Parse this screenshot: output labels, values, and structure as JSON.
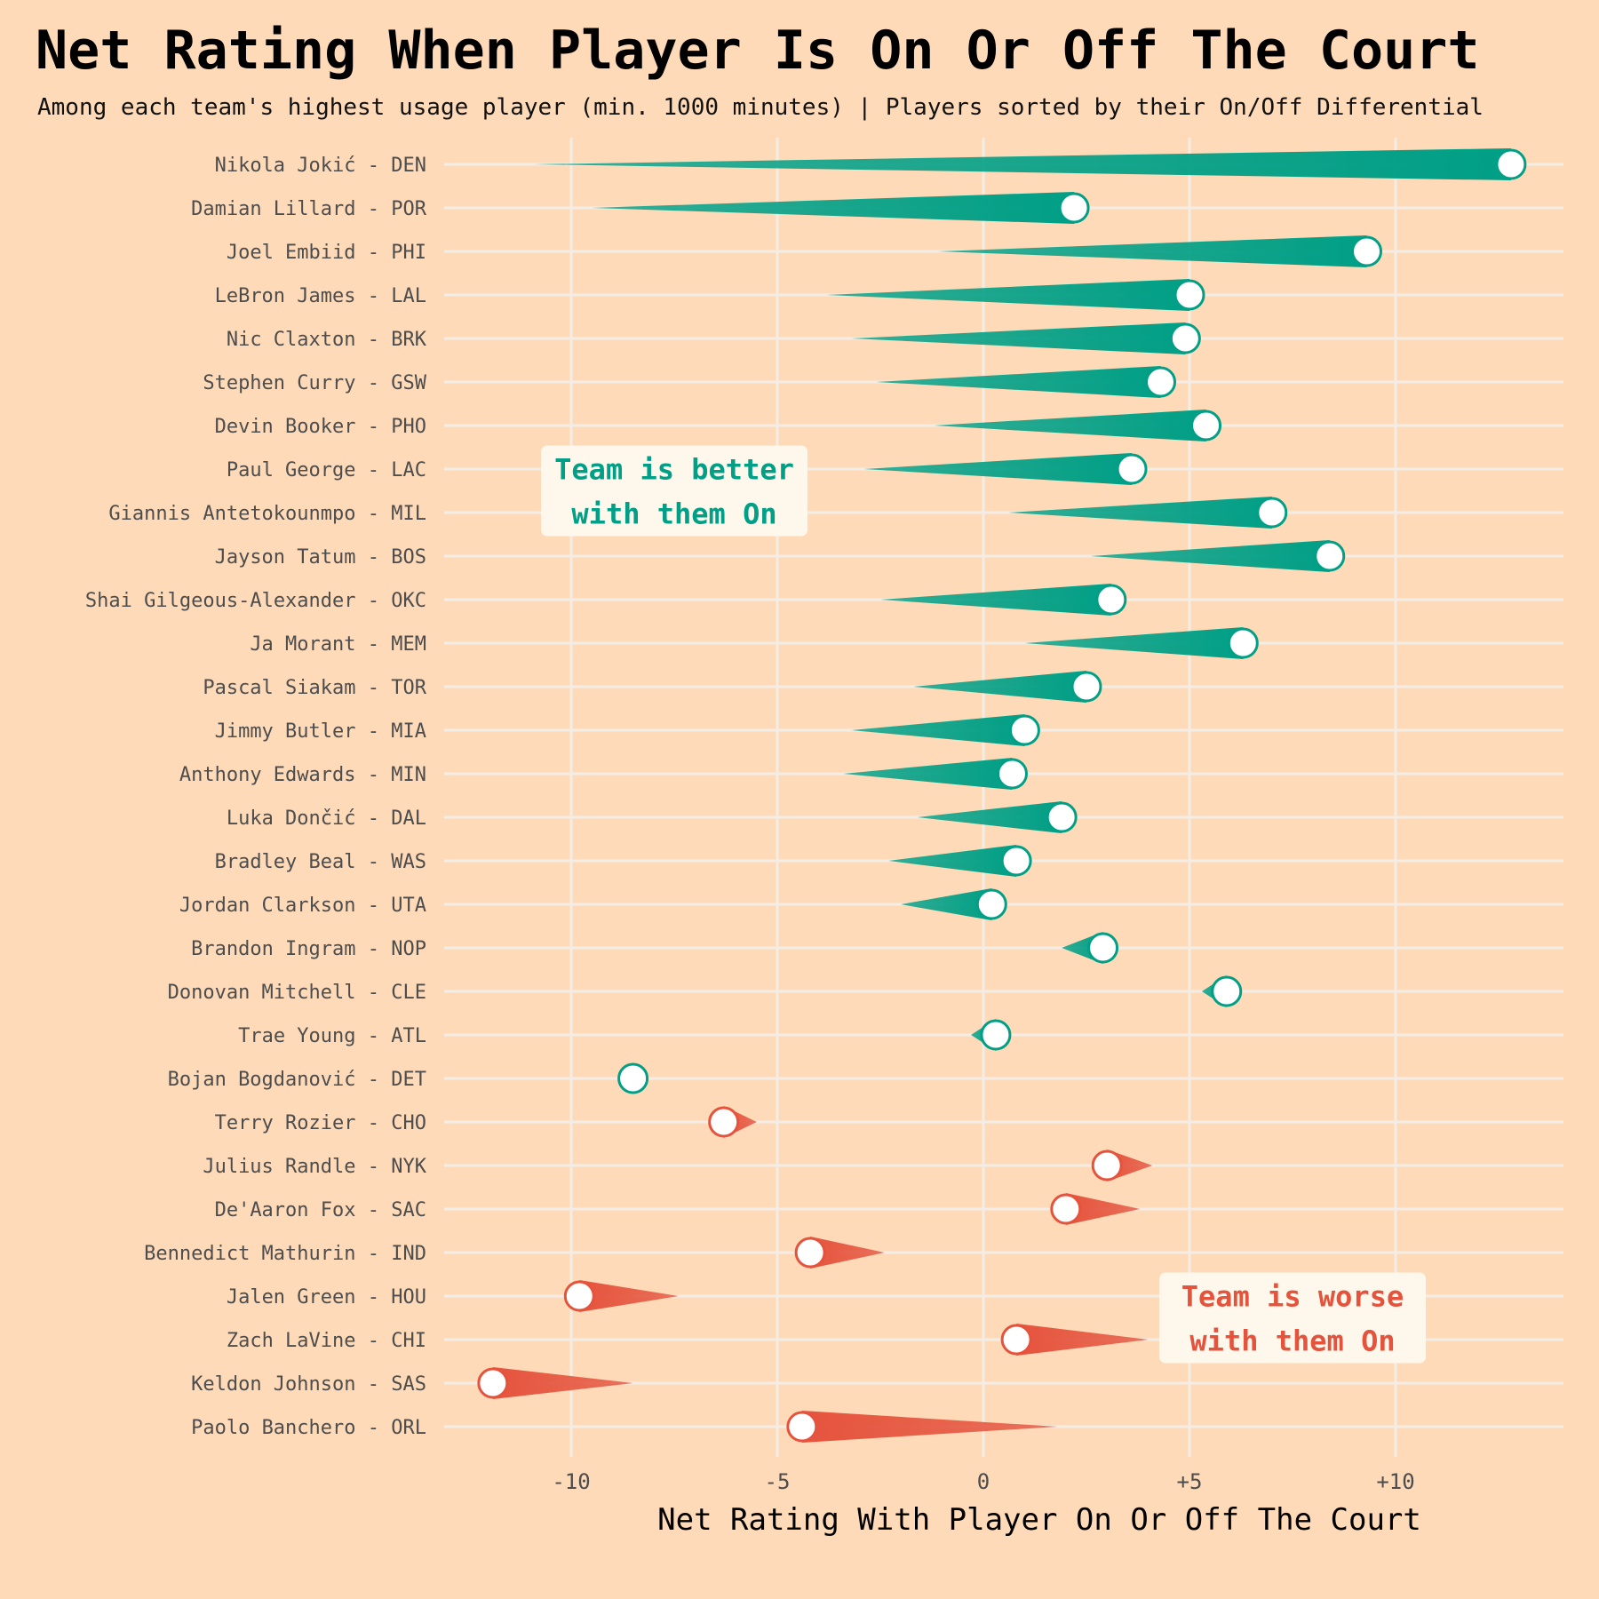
{
  "chart_data": {
    "type": "comet",
    "title": "Net Rating When Player Is On Or Off The Court",
    "subtitle": "Among each team's highest usage player (min. 1000 minutes) | Players sorted by their On/Off Differential",
    "xlabel": "Net Rating With Player On Or Off The Court",
    "xlim": [
      -13.5,
      14
    ],
    "xticks": [
      {
        "value": -10,
        "label": "-10"
      },
      {
        "value": -5,
        "label": "-5"
      },
      {
        "value": 0,
        "label": "0"
      },
      {
        "value": 5,
        "label": "+5"
      },
      {
        "value": 10,
        "label": "+10"
      }
    ],
    "grid": true,
    "colors": {
      "better": "#009F86",
      "worse": "#E5533D",
      "background": "#FEDAB8",
      "grid": "#F3EDE6",
      "note_bg": "#FEF8EC"
    },
    "annotations": [
      {
        "id": "better",
        "lines": [
          "Team is better",
          "with them On"
        ],
        "x": -7.5,
        "y_between": [
          "Paul George - LAC",
          "Giannis Antetokounmpo - MIL"
        ]
      },
      {
        "id": "worse",
        "lines": [
          "Team is worse",
          "with them On"
        ],
        "x": 7.5,
        "y_between": [
          "Jalen Green - HOU",
          "Zach LaVine - CHI"
        ]
      }
    ],
    "players": [
      {
        "label": "Nikola Jokić - DEN",
        "off": -10.9,
        "on": 12.8
      },
      {
        "label": "Damian Lillard - POR",
        "off": -9.5,
        "on": 2.2
      },
      {
        "label": "Joel Embiid - PHI",
        "off": -1.1,
        "on": 9.3
      },
      {
        "label": "LeBron James - LAL",
        "off": -3.8,
        "on": 5.0
      },
      {
        "label": "Nic Claxton - BRK",
        "off": -3.2,
        "on": 4.9
      },
      {
        "label": "Stephen Curry - GSW",
        "off": -2.6,
        "on": 4.3
      },
      {
        "label": "Devin Booker - PHO",
        "off": -1.2,
        "on": 5.4
      },
      {
        "label": "Paul George - LAC",
        "off": -2.9,
        "on": 3.6
      },
      {
        "label": "Giannis Antetokounmpo - MIL",
        "off": 0.6,
        "on": 7.0
      },
      {
        "label": "Jayson Tatum - BOS",
        "off": 2.6,
        "on": 8.4
      },
      {
        "label": "Shai Gilgeous-Alexander - OKC",
        "off": -2.5,
        "on": 3.1
      },
      {
        "label": "Ja Morant - MEM",
        "off": 1.0,
        "on": 6.3
      },
      {
        "label": "Pascal Siakam - TOR",
        "off": -1.7,
        "on": 2.5
      },
      {
        "label": "Jimmy Butler - MIA",
        "off": -3.2,
        "on": 1.0
      },
      {
        "label": "Anthony Edwards - MIN",
        "off": -3.4,
        "on": 0.7
      },
      {
        "label": "Luka Dončić - DAL",
        "off": -1.6,
        "on": 1.9
      },
      {
        "label": "Bradley Beal - WAS",
        "off": -2.3,
        "on": 0.8
      },
      {
        "label": "Jordan Clarkson - UTA",
        "off": -2.0,
        "on": 0.2
      },
      {
        "label": "Brandon Ingram - NOP",
        "off": 1.9,
        "on": 2.9
      },
      {
        "label": "Donovan Mitchell - CLE",
        "off": 5.3,
        "on": 5.9
      },
      {
        "label": "Trae Young - ATL",
        "off": -0.3,
        "on": 0.3
      },
      {
        "label": "Bojan Bogdanović - DET",
        "off": -8.5,
        "on": -8.5
      },
      {
        "label": "Terry Rozier - CHO",
        "off": -5.5,
        "on": -6.3
      },
      {
        "label": "Julius Randle - NYK",
        "off": 4.1,
        "on": 3.0
      },
      {
        "label": "De'Aaron Fox - SAC",
        "off": 3.8,
        "on": 2.0
      },
      {
        "label": "Bennedict Mathurin - IND",
        "off": -2.4,
        "on": -4.2
      },
      {
        "label": "Jalen Green - HOU",
        "off": -7.4,
        "on": -9.8
      },
      {
        "label": "Zach LaVine - CHI",
        "off": 4.0,
        "on": 0.8
      },
      {
        "label": "Keldon Johnson - SAS",
        "off": -8.5,
        "on": -11.9
      },
      {
        "label": "Paolo Banchero - ORL",
        "off": 1.8,
        "on": -4.4
      }
    ]
  }
}
